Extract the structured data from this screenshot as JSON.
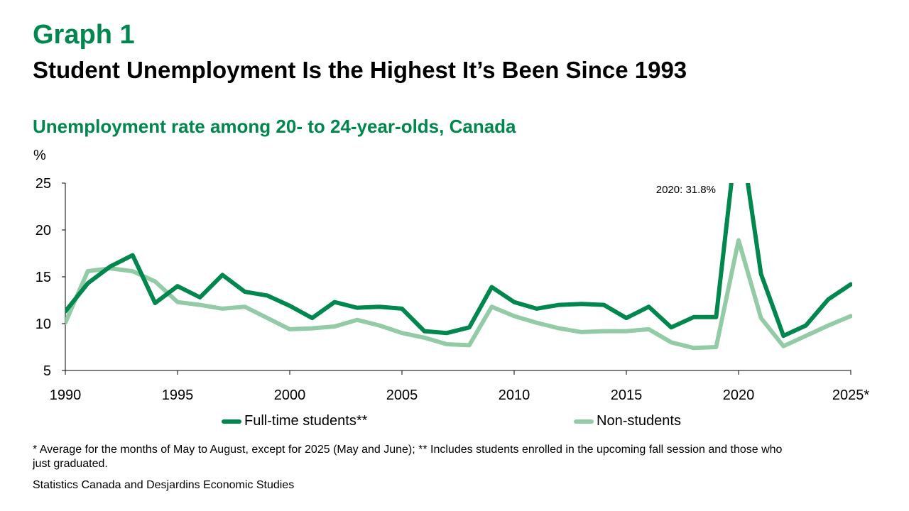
{
  "header": {
    "graph_label": "Graph 1",
    "title": "Student Unemployment Is the Highest It’s Been Since 1993"
  },
  "chart_data": {
    "type": "line",
    "title": "Unemployment rate among 20- to 24-year-olds, Canada",
    "ylabel": "%",
    "xlabel": "",
    "ylim": [
      5,
      25
    ],
    "xlim": [
      1990,
      2025
    ],
    "y_ticks": [
      5,
      10,
      15,
      20,
      25
    ],
    "x_ticks": [
      {
        "value": 1990,
        "label": "1990"
      },
      {
        "value": 1995,
        "label": "1995"
      },
      {
        "value": 2000,
        "label": "2000"
      },
      {
        "value": 2005,
        "label": "2005"
      },
      {
        "value": 2010,
        "label": "2010"
      },
      {
        "value": 2015,
        "label": "2015"
      },
      {
        "value": 2020,
        "label": "2020"
      },
      {
        "value": 2025,
        "label": "2025*"
      }
    ],
    "grid": false,
    "legend_position": "bottom",
    "x": [
      1990,
      1991,
      1992,
      1993,
      1994,
      1995,
      1996,
      1997,
      1998,
      1999,
      2000,
      2001,
      2002,
      2003,
      2004,
      2005,
      2006,
      2007,
      2008,
      2009,
      2010,
      2011,
      2012,
      2013,
      2014,
      2015,
      2016,
      2017,
      2018,
      2019,
      2020,
      2021,
      2022,
      2023,
      2024,
      2025
    ],
    "series": [
      {
        "name": "Full-time students**",
        "color": "#00874D",
        "values": [
          11.3,
          14.3,
          16.1,
          17.3,
          12.2,
          14.0,
          12.8,
          15.2,
          13.4,
          13.0,
          11.9,
          10.6,
          12.3,
          11.7,
          11.8,
          11.6,
          9.2,
          9.0,
          9.6,
          13.9,
          12.3,
          11.6,
          12.0,
          12.1,
          12.0,
          10.6,
          11.8,
          9.6,
          10.7,
          10.7,
          31.8,
          15.3,
          8.7,
          9.8,
          12.6,
          14.2
        ]
      },
      {
        "name": "Non-students",
        "color": "#93CBA6",
        "values": [
          10.1,
          15.6,
          15.9,
          15.6,
          14.5,
          12.3,
          12.0,
          11.6,
          11.8,
          10.6,
          9.4,
          9.5,
          9.7,
          10.4,
          9.8,
          9.0,
          8.5,
          7.8,
          7.7,
          11.8,
          10.8,
          10.1,
          9.5,
          9.1,
          9.2,
          9.2,
          9.4,
          8.0,
          7.4,
          7.5,
          18.9,
          10.6,
          7.6,
          8.7,
          9.8,
          10.8
        ]
      }
    ],
    "annotations": [
      {
        "text": "2020: 31.8%",
        "x": 2020,
        "y": 25
      }
    ]
  },
  "footnote": "* Average for the months of May to August, except for 2025 (May and June); ** Includes students enrolled in the upcoming fall session and those who just graduated.",
  "source": "Statistics Canada and Desjardins Economic Studies"
}
